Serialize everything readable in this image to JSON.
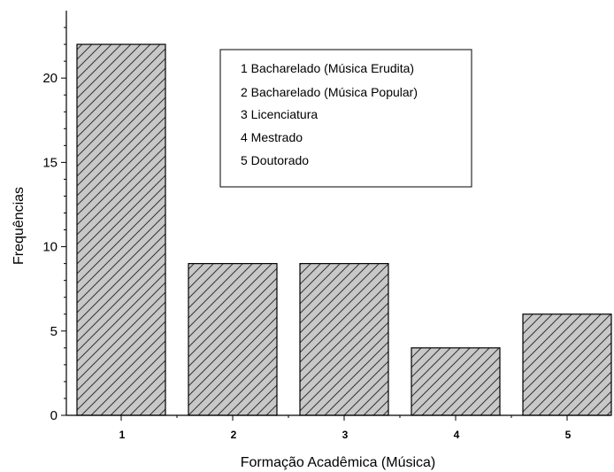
{
  "chart_data": {
    "type": "bar",
    "categories": [
      "1",
      "2",
      "3",
      "4",
      "5"
    ],
    "values": [
      22,
      9,
      9,
      4,
      6
    ],
    "title": "",
    "xlabel": "Formação Acadêmica (Música)",
    "ylabel": "Frequências",
    "ylim": [
      0,
      24
    ],
    "yticks": [
      "0",
      "5",
      "10",
      "15",
      "20"
    ],
    "grid": false,
    "bar_fill": "#c8c8c8",
    "bar_hatch": "diagonal",
    "legend_placement": "top-center",
    "legend": [
      "1 Bacharelado (Música Erudita)",
      "2 Bacharelado (Música Popular)",
      "3 Licenciatura",
      "4 Mestrado",
      "5 Doutorado"
    ]
  }
}
